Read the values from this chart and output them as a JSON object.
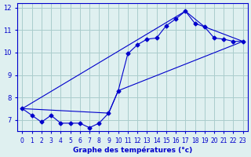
{
  "line1_x": [
    0,
    1,
    2,
    3,
    4,
    5,
    6,
    7,
    8,
    9,
    10,
    11,
    12,
    13,
    14,
    15,
    16,
    17,
    18,
    19,
    20,
    21,
    22,
    23
  ],
  "line1_y": [
    7.5,
    7.2,
    6.9,
    7.2,
    6.85,
    6.85,
    6.85,
    6.65,
    6.85,
    7.3,
    8.3,
    9.95,
    10.35,
    10.6,
    10.65,
    11.2,
    11.5,
    11.85,
    11.3,
    11.15,
    10.65,
    10.6,
    10.5,
    10.5
  ],
  "line2_x": [
    0,
    9,
    10,
    23
  ],
  "line2_y": [
    7.5,
    7.3,
    8.3,
    10.5
  ],
  "line3_x": [
    0,
    17,
    19,
    23
  ],
  "line3_y": [
    7.5,
    11.85,
    11.15,
    10.5
  ],
  "bg_color": "#dff0f0",
  "grid_color": "#aacccc",
  "line_color": "#0000cc",
  "xlim": [
    -0.5,
    23.5
  ],
  "ylim": [
    6.5,
    12.2
  ],
  "yticks": [
    7,
    8,
    9,
    10,
    11,
    12
  ],
  "xticks": [
    0,
    1,
    2,
    3,
    4,
    5,
    6,
    7,
    8,
    9,
    10,
    11,
    12,
    13,
    14,
    15,
    16,
    17,
    18,
    19,
    20,
    21,
    22,
    23
  ],
  "xlabel": "Graphe des températures (°c)"
}
